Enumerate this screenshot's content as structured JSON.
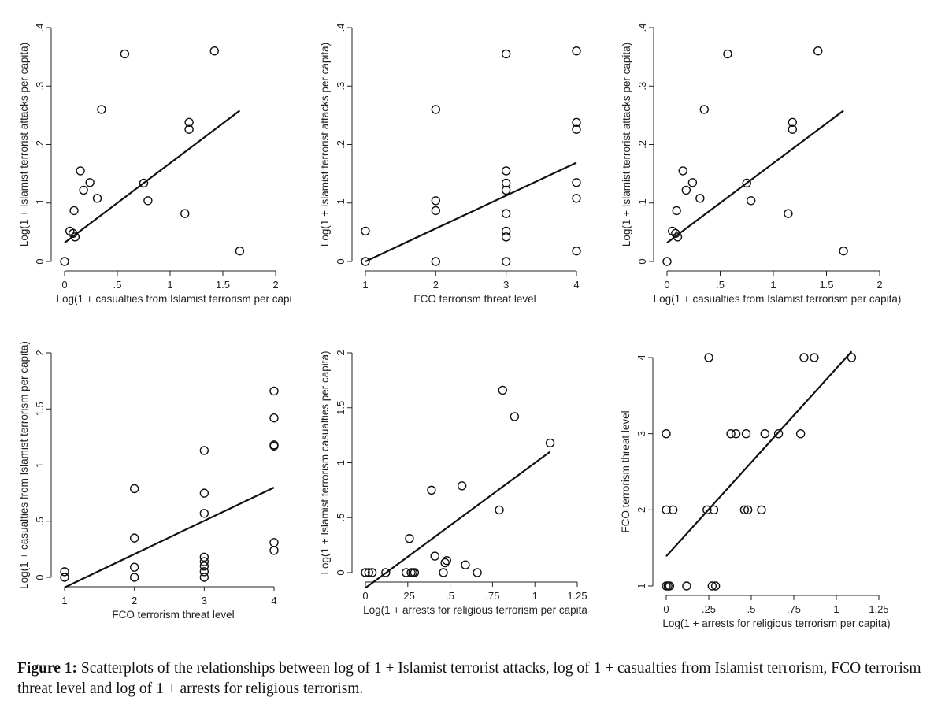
{
  "figure": {
    "caption_label": "Figure 1:",
    "caption_text": "Scatterplots of the relationships between log of 1 + Islamist terrorist attacks, log of 1 + casualties from Islamist terrorism, FCO terrorism threat level and log of 1 + arrests for religious terrorism."
  },
  "chart_data": [
    {
      "type": "scatter",
      "title": "",
      "xlabel": "Log(1 + casualties from Islamist terrorism per capi",
      "ylabel": "Log(1 + Islamist terrorist attacks per capita)",
      "xlim": [
        0,
        2
      ],
      "ylim": [
        0,
        0.4
      ],
      "xticks": [
        0,
        0.5,
        1,
        1.5,
        2
      ],
      "xtick_labels": [
        "0",
        ".5",
        "1",
        "1.5",
        "2"
      ],
      "yticks": [
        0,
        0.1,
        0.2,
        0.3,
        0.4
      ],
      "ytick_labels": [
        "0",
        ".1",
        ".2",
        ".3",
        ".4"
      ],
      "points": [
        [
          0,
          0
        ],
        [
          0.05,
          0.052
        ],
        [
          0.08,
          0.048
        ],
        [
          0.1,
          0.042
        ],
        [
          0.09,
          0.087
        ],
        [
          0.15,
          0.155
        ],
        [
          0.18,
          0.122
        ],
        [
          0.24,
          0.135
        ],
        [
          0.31,
          0.108
        ],
        [
          0.35,
          0.26
        ],
        [
          0.57,
          0.355
        ],
        [
          0.75,
          0.134
        ],
        [
          0.79,
          0.104
        ],
        [
          1.14,
          0.082
        ],
        [
          1.18,
          0.238
        ],
        [
          1.18,
          0.226
        ],
        [
          1.42,
          0.36
        ],
        [
          1.66,
          0.018
        ]
      ],
      "fit_line": {
        "x": [
          0,
          1.66
        ],
        "y": [
          0.032,
          0.258
        ]
      }
    },
    {
      "type": "scatter",
      "title": "",
      "xlabel": "FCO terrorism threat level",
      "ylabel": "Log(1 + Islamist terrorist attacks per capita)",
      "xlim": [
        1,
        4
      ],
      "ylim": [
        0,
        0.4
      ],
      "xticks": [
        1,
        2,
        3,
        4
      ],
      "xtick_labels": [
        "1",
        "2",
        "3",
        "4"
      ],
      "yticks": [
        0,
        0.1,
        0.2,
        0.3,
        0.4
      ],
      "ytick_labels": [
        "0",
        ".1",
        ".2",
        ".3",
        ".4"
      ],
      "points": [
        [
          1,
          0.052
        ],
        [
          1,
          0
        ],
        [
          2,
          0.26
        ],
        [
          2,
          0.104
        ],
        [
          2,
          0.087
        ],
        [
          2,
          0
        ],
        [
          3,
          0.355
        ],
        [
          3,
          0.155
        ],
        [
          3,
          0.134
        ],
        [
          3,
          0.122
        ],
        [
          3,
          0.082
        ],
        [
          3,
          0.052
        ],
        [
          3,
          0.042
        ],
        [
          3,
          0
        ],
        [
          4,
          0.36
        ],
        [
          4,
          0.238
        ],
        [
          4,
          0.226
        ],
        [
          4,
          0.135
        ],
        [
          4,
          0.108
        ],
        [
          4,
          0.018
        ]
      ],
      "fit_line": {
        "x": [
          1,
          4
        ],
        "y": [
          0,
          0.169
        ]
      }
    },
    {
      "type": "scatter",
      "title": "",
      "xlabel": "Log(1 + casualties from Islamist terrorism per capita)",
      "ylabel": "Log(1 + Islamist terrorist attacks per capita)",
      "xlim": [
        0,
        2
      ],
      "ylim": [
        0,
        0.4
      ],
      "xticks": [
        0,
        0.5,
        1,
        1.5,
        2
      ],
      "xtick_labels": [
        "0",
        ".5",
        "1",
        "1.5",
        "2"
      ],
      "yticks": [
        0,
        0.1,
        0.2,
        0.3,
        0.4
      ],
      "ytick_labels": [
        "0",
        ".1",
        ".2",
        ".3",
        ".4"
      ],
      "points": [
        [
          0,
          0
        ],
        [
          0.05,
          0.052
        ],
        [
          0.08,
          0.048
        ],
        [
          0.1,
          0.042
        ],
        [
          0.09,
          0.087
        ],
        [
          0.15,
          0.155
        ],
        [
          0.18,
          0.122
        ],
        [
          0.24,
          0.135
        ],
        [
          0.31,
          0.108
        ],
        [
          0.35,
          0.26
        ],
        [
          0.57,
          0.355
        ],
        [
          0.75,
          0.134
        ],
        [
          0.79,
          0.104
        ],
        [
          1.14,
          0.082
        ],
        [
          1.18,
          0.238
        ],
        [
          1.18,
          0.226
        ],
        [
          1.42,
          0.36
        ],
        [
          1.66,
          0.018
        ]
      ],
      "fit_line": {
        "x": [
          0,
          1.66
        ],
        "y": [
          0.032,
          0.258
        ]
      }
    },
    {
      "type": "scatter",
      "title": "",
      "xlabel": "FCO terrorism threat level",
      "ylabel": "Log(1 + casualties from Islamist terrorism per capita)",
      "xlim": [
        1,
        4
      ],
      "ylim": [
        0,
        2
      ],
      "xticks": [
        1,
        2,
        3,
        4
      ],
      "xtick_labels": [
        "1",
        "2",
        "3",
        "4"
      ],
      "yticks": [
        0,
        0.5,
        1,
        1.5,
        2
      ],
      "ytick_labels": [
        "0",
        ".5",
        "1",
        "1.5",
        "2"
      ],
      "points": [
        [
          1,
          0.05
        ],
        [
          1,
          0
        ],
        [
          2,
          0.79
        ],
        [
          2,
          0.35
        ],
        [
          2,
          0.09
        ],
        [
          2,
          0
        ],
        [
          3,
          1.13
        ],
        [
          3,
          0.75
        ],
        [
          3,
          0.57
        ],
        [
          3,
          0.18
        ],
        [
          3,
          0.14
        ],
        [
          3,
          0.1
        ],
        [
          3,
          0.05
        ],
        [
          3,
          0
        ],
        [
          4,
          1.66
        ],
        [
          4,
          1.42
        ],
        [
          4,
          1.18
        ],
        [
          4,
          1.17
        ],
        [
          4,
          0.31
        ],
        [
          4,
          0.24
        ]
      ],
      "fit_line": {
        "x": [
          1,
          4
        ],
        "y": [
          -0.09,
          0.8
        ]
      }
    },
    {
      "type": "scatter",
      "title": "",
      "xlabel": "Log(1 + arrests for religious terrorism per capita",
      "ylabel": "Log(1 + Islamist terrorism casualties per capita)",
      "xlim": [
        0,
        1.25
      ],
      "ylim": [
        0,
        2
      ],
      "xticks": [
        0,
        0.25,
        0.5,
        0.75,
        1,
        1.25
      ],
      "xtick_labels": [
        "0",
        ".25",
        ".5",
        ".75",
        "1",
        "1.25"
      ],
      "yticks": [
        0,
        0.5,
        1,
        1.5,
        2
      ],
      "ytick_labels": [
        "0",
        ".5",
        "1",
        "1.5",
        "2"
      ],
      "points": [
        [
          0,
          0
        ],
        [
          0.02,
          0
        ],
        [
          0.04,
          0
        ],
        [
          0.12,
          0
        ],
        [
          0.24,
          0
        ],
        [
          0.26,
          0.31
        ],
        [
          0.27,
          0
        ],
        [
          0.28,
          0
        ],
        [
          0.29,
          0
        ],
        [
          0.39,
          0.75
        ],
        [
          0.41,
          0.15
        ],
        [
          0.46,
          0
        ],
        [
          0.47,
          0.09
        ],
        [
          0.48,
          0.11
        ],
        [
          0.57,
          0.79
        ],
        [
          0.59,
          0.07
        ],
        [
          0.66,
          0
        ],
        [
          0.79,
          0.57
        ],
        [
          0.81,
          1.66
        ],
        [
          0.88,
          1.42
        ],
        [
          1.09,
          1.18
        ]
      ],
      "fit_line": {
        "x": [
          0,
          1.09
        ],
        "y": [
          -0.14,
          1.1
        ]
      }
    },
    {
      "type": "scatter",
      "title": "",
      "xlabel": "Log(1 + arrests for religious terrorism per capita)",
      "ylabel": "FCO terrorism threat level",
      "xlim": [
        0,
        1.25
      ],
      "ylim": [
        1,
        4
      ],
      "xticks": [
        0,
        0.25,
        0.5,
        0.75,
        1,
        1.25
      ],
      "xtick_labels": [
        "0",
        ".25",
        ".5",
        ".75",
        "1",
        "1.25"
      ],
      "yticks": [
        1,
        2,
        3,
        4
      ],
      "ytick_labels": [
        "1",
        "2",
        "3",
        "4"
      ],
      "points": [
        [
          0,
          3
        ],
        [
          0,
          2
        ],
        [
          0,
          1
        ],
        [
          0.01,
          1
        ],
        [
          0.02,
          1
        ],
        [
          0.04,
          2
        ],
        [
          0.12,
          1
        ],
        [
          0.24,
          2
        ],
        [
          0.25,
          4
        ],
        [
          0.27,
          1
        ],
        [
          0.28,
          2
        ],
        [
          0.29,
          1
        ],
        [
          0.38,
          3
        ],
        [
          0.41,
          3
        ],
        [
          0.46,
          2
        ],
        [
          0.47,
          3
        ],
        [
          0.48,
          2
        ],
        [
          0.56,
          2
        ],
        [
          0.58,
          3
        ],
        [
          0.66,
          3
        ],
        [
          0.79,
          3
        ],
        [
          0.81,
          4
        ],
        [
          0.87,
          4
        ],
        [
          1.09,
          4
        ]
      ],
      "fit_line": {
        "x": [
          0,
          1.09
        ],
        "y": [
          1.39,
          4.08
        ]
      }
    }
  ]
}
